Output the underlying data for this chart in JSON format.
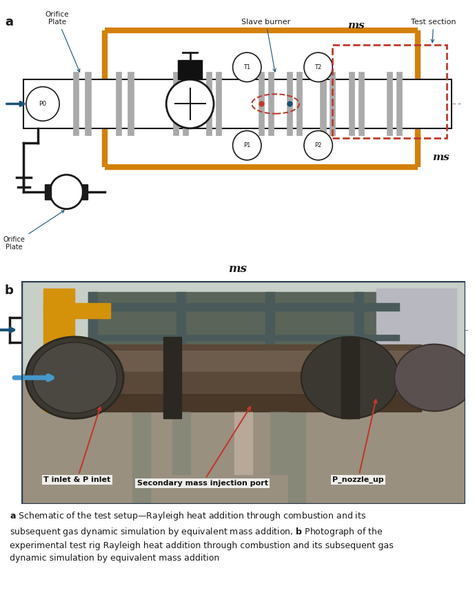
{
  "fig_width": 6.89,
  "fig_height": 8.85,
  "bg_color": "#ffffff",
  "orange": "#D4800A",
  "blue": "#1A5276",
  "red": "#C0392B",
  "dark": "#1a1a1a",
  "gray": "#888888",
  "lt_gray": "#cccccc",
  "photo_border": "#2E4057",
  "caption_a_bold": "a",
  "caption_a_rest": " Schematic of the test setup—Rayleigh heat addition through combustion and its\nsubsequent gas dynamic simulation by equivalent mass addition, ",
  "caption_b_bold": "b",
  "caption_b_rest": " Photograph of the\nexperimental test rig Rayleigh heat addition through combustion and its subsequent gas\ndynamic simulation by equivalent mass addition"
}
